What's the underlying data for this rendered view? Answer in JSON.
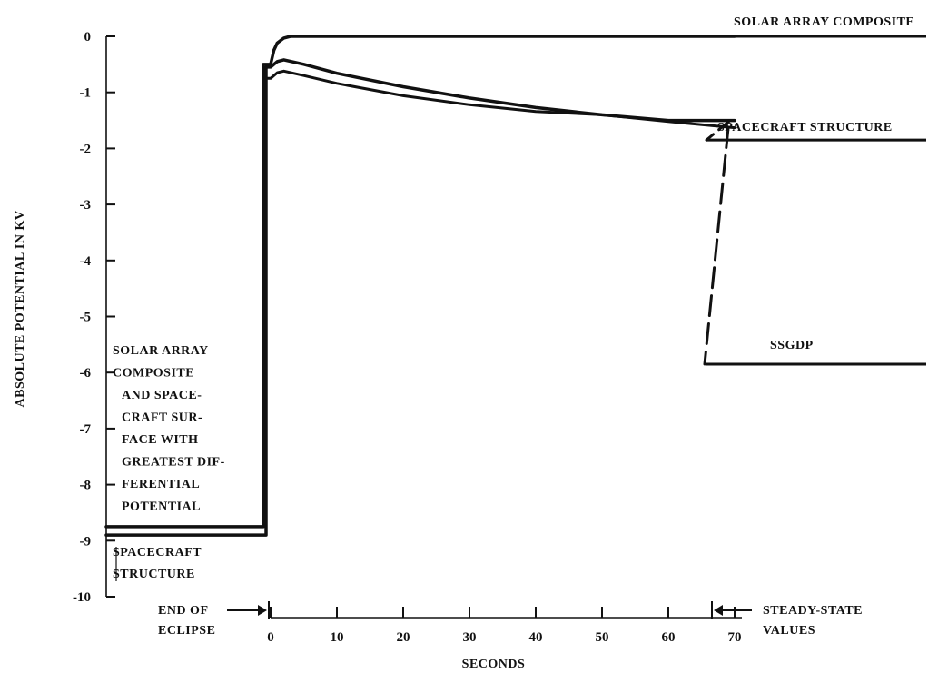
{
  "chart_data": {
    "type": "line",
    "xlabel": "SECONDS",
    "ylabel": "ABSOLUTE POTENTIAL IN KV",
    "ylim": [
      -10,
      0
    ],
    "xlim": [
      0,
      70
    ],
    "y_ticks": [
      "0",
      "-1",
      "-2",
      "-3",
      "-4",
      "-5",
      "-6",
      "-7",
      "-8",
      "-9",
      "-10"
    ],
    "x_ticks": [
      "0",
      "10",
      "20",
      "30",
      "40",
      "50",
      "60",
      "70"
    ],
    "grid": false,
    "series": [
      {
        "name": "SOLAR ARRAY COMPOSITE",
        "before_eclipse_end": -8.75,
        "x": [
          0,
          0.5,
          1,
          2,
          3,
          5,
          10,
          20,
          30,
          40,
          50,
          60,
          70
        ],
        "y": [
          -0.5,
          -0.25,
          -0.12,
          -0.03,
          0,
          0,
          0,
          0,
          0,
          0,
          0,
          0,
          0
        ],
        "steady_state": 0
      },
      {
        "name": "SPACECRAFT STRUCTURE",
        "before_eclipse_end": -8.9,
        "x": [
          0,
          1,
          2,
          5,
          10,
          20,
          30,
          40,
          50,
          60,
          70
        ],
        "y": [
          -0.55,
          -0.45,
          -0.42,
          -0.5,
          -0.66,
          -0.9,
          -1.1,
          -1.27,
          -1.4,
          -1.5,
          -1.5
        ],
        "steady_state": -1.85
      },
      {
        "name": "SSGDP",
        "x": [
          0,
          1,
          2,
          5,
          10,
          20,
          30,
          40,
          50,
          60,
          70
        ],
        "y": [
          -0.75,
          -0.65,
          -0.62,
          -0.7,
          -0.84,
          -1.06,
          -1.22,
          -1.34,
          -1.4,
          -1.52,
          -1.63
        ],
        "steady_state": -5.85
      }
    ],
    "annotations": {
      "solar_array": "SOLAR ARRAY COMPOSITE",
      "spacecraft_structure_right": "SPACECRAFT STRUCTURE",
      "ssgdp": "SSGDP",
      "left_lines": [
        "SOLAR ARRAY",
        "COMPOSITE",
        "AND SPACE-",
        "CRAFT SUR-",
        "FACE WITH",
        "GREATEST DIF-",
        "FERENTIAL",
        "POTENTIAL"
      ],
      "spacecraft_structure_left": [
        "SPACECRAFT",
        "STRUCTURE"
      ],
      "end_of_eclipse": [
        "END OF",
        "ECLIPSE"
      ],
      "steady_state": [
        "STEADY-STATE",
        "VALUES"
      ]
    }
  }
}
